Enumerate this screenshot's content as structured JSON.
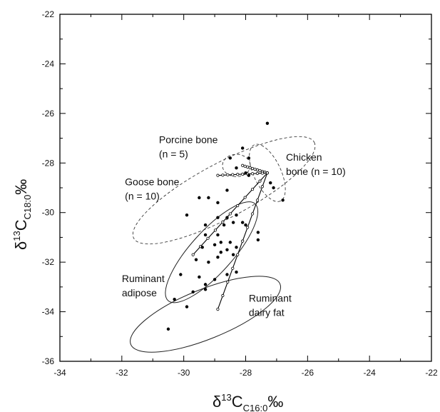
{
  "chart_data": {
    "type": "scatter",
    "xlabel": {
      "prefix": "δ",
      "sup": "13",
      "main": "C",
      "sub": "C16:0",
      "suffix": "‰"
    },
    "ylabel": {
      "prefix": "δ",
      "sup": "13",
      "main": "C",
      "sub": "C18:0",
      "suffix": "‰"
    },
    "xlim": [
      -34,
      -22
    ],
    "ylim": [
      -36,
      -22
    ],
    "xticks": [
      -34,
      -32,
      -30,
      -28,
      -26,
      -24,
      -22
    ],
    "yticks": [
      -36,
      -34,
      -32,
      -30,
      -28,
      -26,
      -24,
      -22
    ],
    "xtick_labels": [
      "-34",
      "-32",
      "-30",
      "-28",
      "-26",
      "-24",
      "-22"
    ],
    "ytick_labels": [
      "-36",
      "-34",
      "-32",
      "-30",
      "-28",
      "-26",
      "-24",
      "-22"
    ],
    "grid": false,
    "samples": [
      [
        -27.3,
        -26.4
      ],
      [
        -28.1,
        -27.4
      ],
      [
        -28.5,
        -27.8
      ],
      [
        -27.9,
        -27.8
      ],
      [
        -28.3,
        -28.2
      ],
      [
        -28.0,
        -28.4
      ],
      [
        -27.9,
        -28.5
      ],
      [
        -27.2,
        -28.8
      ],
      [
        -27.1,
        -29.0
      ],
      [
        -26.8,
        -29.5
      ],
      [
        -28.6,
        -29.1
      ],
      [
        -28.9,
        -29.6
      ],
      [
        -29.2,
        -29.4
      ],
      [
        -29.5,
        -29.4
      ],
      [
        -29.9,
        -30.1
      ],
      [
        -28.3,
        -30.1
      ],
      [
        -28.6,
        -30.2
      ],
      [
        -28.9,
        -30.2
      ],
      [
        -28.1,
        -30.4
      ],
      [
        -28.4,
        -30.4
      ],
      [
        -28.7,
        -30.5
      ],
      [
        -29.3,
        -30.5
      ],
      [
        -28.0,
        -30.5
      ],
      [
        -27.6,
        -30.8
      ],
      [
        -28.9,
        -30.9
      ],
      [
        -29.3,
        -30.9
      ],
      [
        -27.6,
        -31.1
      ],
      [
        -28.5,
        -31.2
      ],
      [
        -28.8,
        -31.2
      ],
      [
        -29.0,
        -31.3
      ],
      [
        -29.4,
        -31.4
      ],
      [
        -28.3,
        -31.4
      ],
      [
        -28.6,
        -31.5
      ],
      [
        -28.8,
        -31.6
      ],
      [
        -28.4,
        -31.7
      ],
      [
        -28.9,
        -31.8
      ],
      [
        -29.6,
        -31.9
      ],
      [
        -29.2,
        -32.0
      ],
      [
        -28.3,
        -32.4
      ],
      [
        -28.6,
        -32.5
      ],
      [
        -30.1,
        -32.5
      ],
      [
        -29.5,
        -32.6
      ],
      [
        -29.0,
        -32.7
      ],
      [
        -29.3,
        -32.9
      ],
      [
        -29.7,
        -33.2
      ],
      [
        -29.3,
        -33.1
      ],
      [
        -30.3,
        -33.5
      ],
      [
        -29.9,
        -33.8
      ],
      [
        -30.5,
        -34.7
      ]
    ],
    "reference_ellipses": [
      {
        "name": "Porcine bone",
        "center": [
          -28.3,
          -28.1
        ],
        "radii": [
          0.45,
          0.45
        ],
        "angle_deg": 0,
        "style": "dashed"
      },
      {
        "name": "Goose bone",
        "center": [
          -28.7,
          -29.1
        ],
        "radii": [
          3.3,
          1.1
        ],
        "angle_deg": 28,
        "style": "dashed"
      },
      {
        "name": "Chicken bone",
        "center": [
          -27.3,
          -28.4
        ],
        "radii": [
          1.0,
          0.55
        ],
        "angle_deg": -65,
        "style": "dashed"
      },
      {
        "name": "Ruminant adipose",
        "center": [
          -29.1,
          -31.6
        ],
        "radii": [
          2.1,
          0.85
        ],
        "angle_deg": 48,
        "style": "solid"
      },
      {
        "name": "Ruminant dairy fat",
        "center": [
          -29.3,
          -34.1
        ],
        "radii": [
          2.6,
          1.0
        ],
        "angle_deg": 22,
        "style": "solid"
      }
    ],
    "mixing_lines": [
      {
        "from": [
          -28.1,
          -28.1
        ],
        "to": [
          -27.3,
          -28.4
        ]
      },
      {
        "from": [
          -28.9,
          -28.5
        ],
        "to": [
          -27.3,
          -28.4
        ]
      },
      {
        "from": [
          -29.7,
          -31.7
        ],
        "to": [
          -27.3,
          -28.4
        ]
      },
      {
        "from": [
          -28.9,
          -33.9
        ],
        "to": [
          -27.3,
          -28.4
        ]
      }
    ],
    "annotations": [
      {
        "lines": [
          "Porcine bone",
          "(n = 5)"
        ],
        "at": [
          -30.8,
          -27.2
        ]
      },
      {
        "lines": [
          "Goose bone",
          "(n = 10)"
        ],
        "at": [
          -31.9,
          -28.9
        ]
      },
      {
        "lines": [
          "Chicken",
          "bone (n = 10)"
        ],
        "at": [
          -26.7,
          -27.9
        ]
      },
      {
        "lines": [
          "Ruminant",
          "adipose"
        ],
        "at": [
          -32.0,
          -32.8
        ]
      },
      {
        "lines": [
          "Ruminant",
          "dairy fat"
        ],
        "at": [
          -27.9,
          -33.6
        ]
      }
    ]
  }
}
